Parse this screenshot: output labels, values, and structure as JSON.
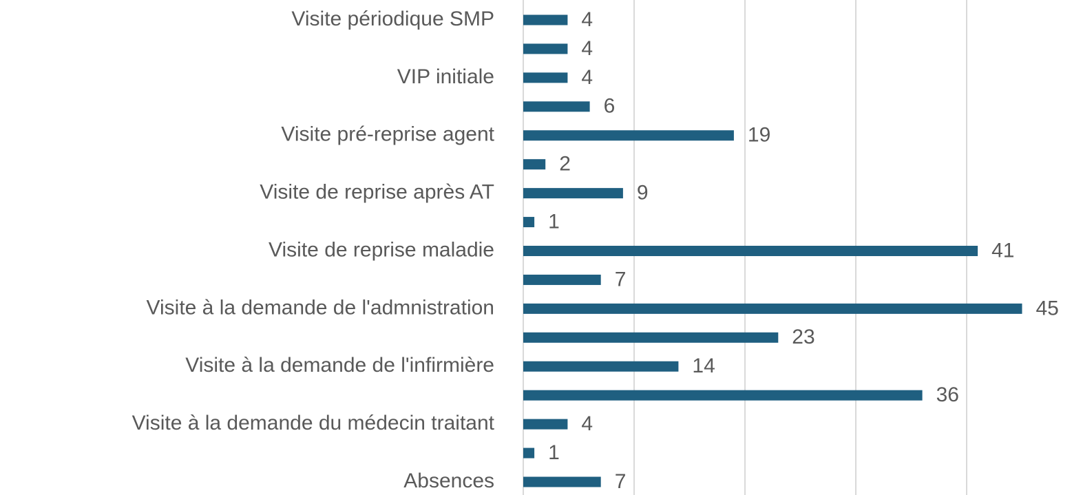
{
  "chart_data": {
    "type": "barh",
    "categories": [
      "Visite périodique SMP",
      null,
      "VIP initiale",
      null,
      "Visite pré-reprise agent",
      null,
      "Visite de reprise après AT",
      null,
      "Visite de reprise maladie",
      null,
      "Visite à la demande de l'admnistration",
      null,
      "Visite à la demande de l'infirmière",
      null,
      "Visite à la demande du médecin traitant",
      null,
      "Absences"
    ],
    "values": [
      4,
      4,
      4,
      6,
      19,
      2,
      9,
      1,
      41,
      7,
      45,
      23,
      14,
      36,
      4,
      1,
      7
    ],
    "color": "#1f5f80",
    "xlim": [
      0,
      45
    ],
    "xticks": [
      0,
      10,
      20,
      30,
      40
    ],
    "grid": true
  }
}
